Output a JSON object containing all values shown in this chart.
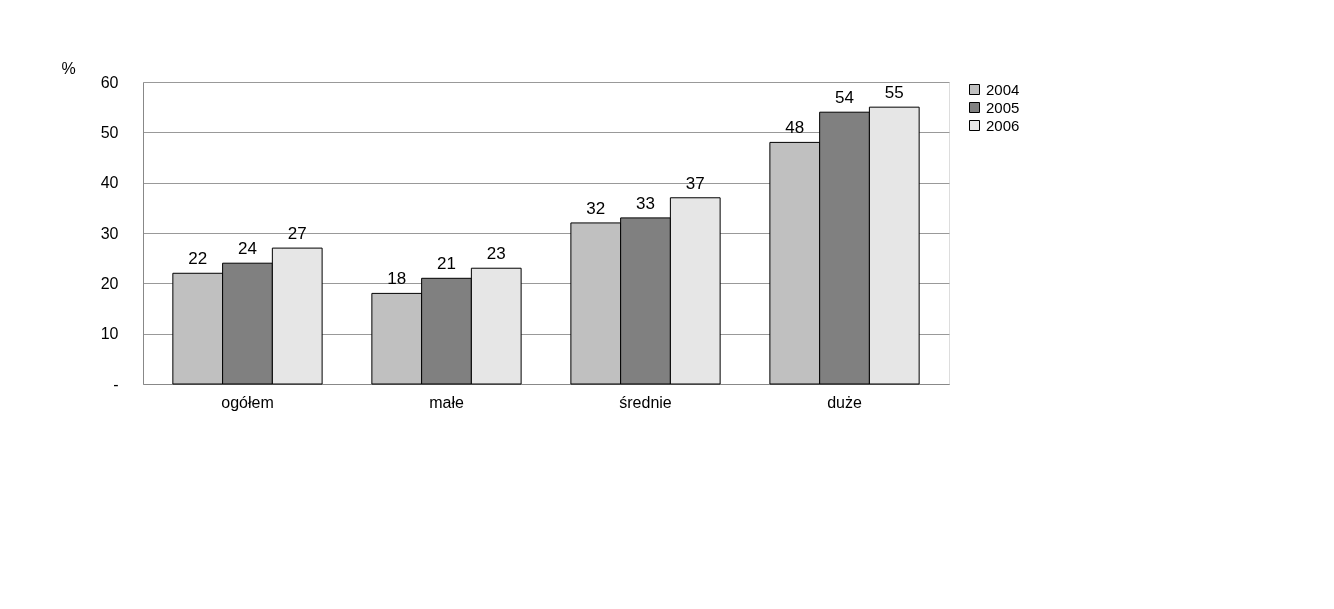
{
  "chart_data": {
    "type": "bar",
    "ylabel": "%",
    "categories": [
      "ogółem",
      "małe",
      "średnie",
      "duże"
    ],
    "series": [
      {
        "name": "2004",
        "color": "#c0c0c0",
        "values": [
          22,
          18,
          32,
          48
        ]
      },
      {
        "name": "2005",
        "color": "#808080",
        "values": [
          24,
          21,
          33,
          54
        ]
      },
      {
        "name": "2006",
        "color": "#e6e6e6",
        "values": [
          27,
          23,
          37,
          55
        ]
      }
    ],
    "ylim": [
      0,
      60
    ],
    "yticks": [
      {
        "value": 0,
        "label": "-"
      },
      10,
      20,
      30,
      40,
      50,
      60
    ],
    "grid": "y",
    "legend": "right",
    "data_labels": true
  }
}
